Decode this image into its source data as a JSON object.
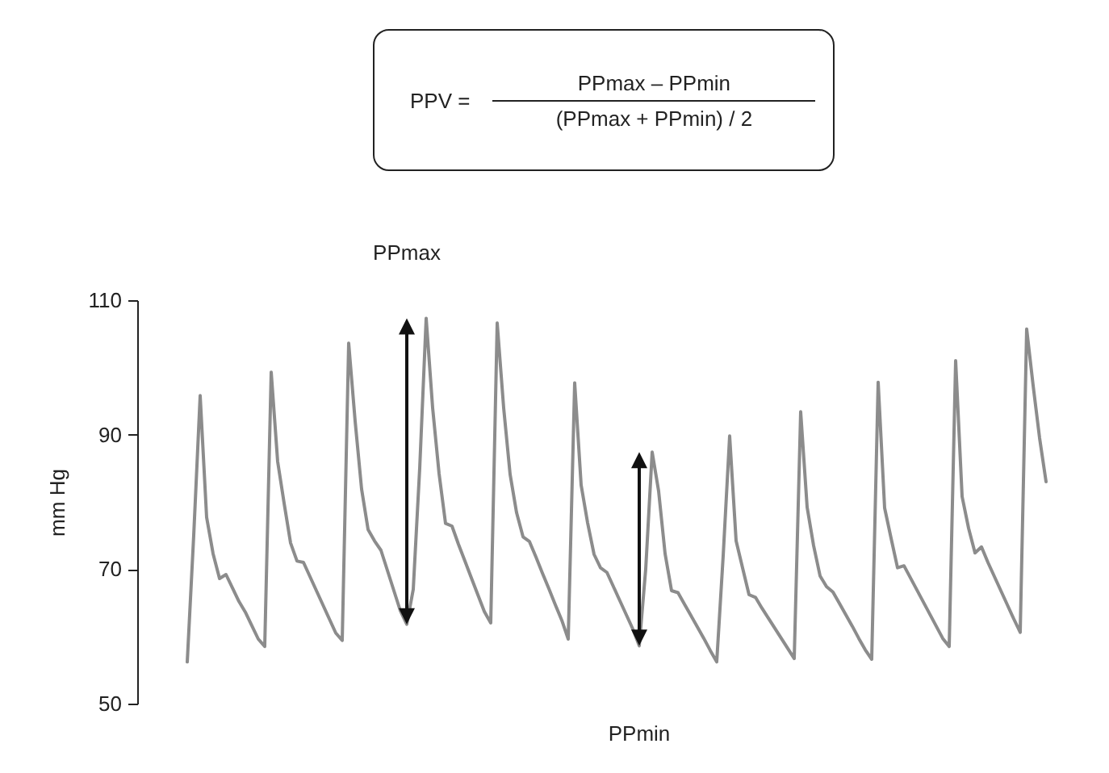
{
  "chart_data": {
    "type": "line",
    "ylabel": "mm Hg",
    "annotations": [
      "PPV =",
      "PPmax – PPmin",
      "(PPmax + PPmin) / 2",
      "PPmax",
      "PPmin"
    ],
    "categories": [
      null,
      null,
      null,
      null,
      null,
      null,
      null,
      null,
      null,
      null,
      null,
      null,
      null,
      null,
      null,
      null,
      null,
      null,
      null,
      null,
      null,
      null,
      null,
      null,
      null,
      null,
      null,
      null,
      null,
      null,
      null,
      null,
      null,
      null,
      null,
      null,
      null,
      null,
      null,
      null,
      null,
      null,
      null,
      null,
      null,
      null,
      null,
      null,
      null,
      null,
      null,
      null,
      null,
      null,
      null,
      null,
      null,
      null,
      null,
      null,
      null,
      null,
      null,
      null,
      null,
      null,
      null,
      null,
      null,
      null,
      null,
      null,
      null,
      null,
      null,
      null,
      null,
      null,
      null,
      null,
      null,
      null,
      null,
      null,
      null,
      null,
      null,
      null,
      null,
      null,
      null,
      null,
      null,
      null,
      null,
      null,
      null,
      null,
      null,
      null,
      null,
      null,
      null,
      null,
      null,
      null,
      null,
      null,
      null,
      null,
      null,
      null,
      null,
      null,
      null,
      null,
      null,
      null,
      null,
      null,
      null,
      null,
      null,
      null,
      null,
      null,
      null,
      null,
      null,
      null,
      null,
      null,
      null,
      null
    ],
    "series": [
      {
        "color": "#8c8c8c",
        "values": [
          56.2,
          75,
          95.8,
          77.7,
          72.3,
          68.6,
          69.2,
          67.2,
          65.2,
          63.6,
          61.6,
          59.6,
          58.5,
          99.3,
          86,
          79.8,
          73.9,
          71.2,
          71.0,
          68.9,
          66.8,
          64.7,
          62.6,
          60.5,
          59.4,
          103.6,
          92,
          81.9,
          75.9,
          74.2,
          72.8,
          69.8,
          66.8,
          63.8,
          61.8,
          67,
          85,
          107.3,
          94,
          84.2,
          76.8,
          76.4,
          73.7,
          71.2,
          68.7,
          66.2,
          63.7,
          62.0,
          106.6,
          94,
          84.1,
          78.4,
          74.8,
          74.1,
          71.8,
          69.4,
          67.1,
          64.7,
          62.4,
          59.6,
          97.7,
          82.5,
          76.9,
          72.2,
          70.2,
          69.5,
          67.4,
          65.3,
          63.2,
          61.1,
          58.6,
          70,
          87.4,
          81.6,
          72.3,
          66.8,
          66.5,
          64.8,
          63.1,
          61.4,
          59.7,
          57.9,
          56.2,
          72,
          89.8,
          74.2,
          70.2,
          66.2,
          65.8,
          64.2,
          62.7,
          61.2,
          59.7,
          58.2,
          56.7,
          93.4,
          79.2,
          73.5,
          69.0,
          67.4,
          66.6,
          64.9,
          63.2,
          61.5,
          59.7,
          58.0,
          56.6,
          97.8,
          79.1,
          74.6,
          70.2,
          70.5,
          68.7,
          66.9,
          65.1,
          63.3,
          61.5,
          59.7,
          58.5,
          101.0,
          80.8,
          76.1,
          72.4,
          73.3,
          71.0,
          68.9,
          66.8,
          64.7,
          62.6,
          60.6,
          105.7,
          97.3,
          89.5,
          83.0
        ]
      }
    ],
    "ylim": [
      50,
      110
    ],
    "yticks": [
      50,
      70,
      90,
      110
    ],
    "tick_labels": "y"
  }
}
